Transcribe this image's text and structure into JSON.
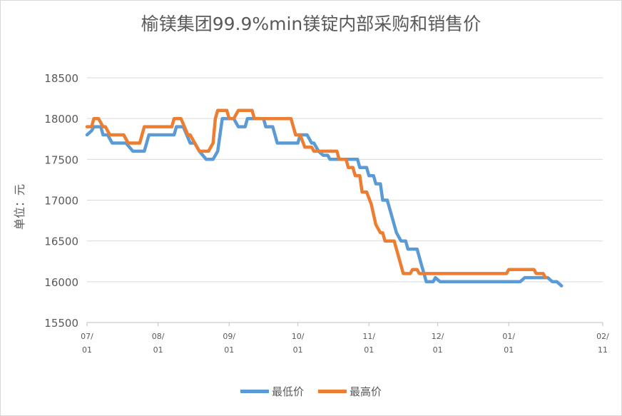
{
  "chart_data": {
    "type": "line",
    "title": "榆镁集团99.9%min镁锭内部采购和销售价",
    "ylabel": "单位：元",
    "xlabel": "",
    "ylim": [
      15500,
      18500
    ],
    "yticks": [
      15500,
      16000,
      16500,
      17000,
      17500,
      18000,
      18500
    ],
    "xticks": [
      {
        "top": "07/",
        "bottom": "01",
        "x": 0
      },
      {
        "top": "08/",
        "bottom": "01",
        "x": 31
      },
      {
        "top": "09/",
        "bottom": "01",
        "x": 62
      },
      {
        "top": "10/",
        "bottom": "01",
        "x": 92
      },
      {
        "top": "11/",
        "bottom": "01",
        "x": 123
      },
      {
        "top": "12/",
        "bottom": "01",
        "x": 153
      },
      {
        "top": "01/",
        "bottom": "01",
        "x": 184
      },
      {
        "top": "02/",
        "bottom": "11",
        "x": 225
      }
    ],
    "x_range": [
      0,
      225
    ],
    "grid": true,
    "legend": "bottom",
    "series": [
      {
        "name": "最低价",
        "color": "#5b9bd5",
        "points": [
          [
            0,
            17800
          ],
          [
            2,
            17850
          ],
          [
            3,
            17900
          ],
          [
            6,
            17900
          ],
          [
            7,
            17800
          ],
          [
            9,
            17800
          ],
          [
            11,
            17700
          ],
          [
            17,
            17700
          ],
          [
            20,
            17600
          ],
          [
            25,
            17600
          ],
          [
            27,
            17800
          ],
          [
            38,
            17800
          ],
          [
            39,
            17900
          ],
          [
            42,
            17900
          ],
          [
            45,
            17700
          ],
          [
            47,
            17700
          ],
          [
            49,
            17600
          ],
          [
            52,
            17500
          ],
          [
            55,
            17500
          ],
          [
            57,
            17600
          ],
          [
            59,
            18000
          ],
          [
            64,
            18000
          ],
          [
            66,
            17900
          ],
          [
            69,
            17900
          ],
          [
            70,
            18000
          ],
          [
            77,
            18000
          ],
          [
            78,
            17900
          ],
          [
            81,
            17900
          ],
          [
            83,
            17700
          ],
          [
            92,
            17700
          ],
          [
            93,
            17800
          ],
          [
            96,
            17800
          ],
          [
            98,
            17700
          ],
          [
            99,
            17700
          ],
          [
            101,
            17600
          ],
          [
            103,
            17550
          ],
          [
            105,
            17550
          ],
          [
            106,
            17500
          ],
          [
            118,
            17500
          ],
          [
            119,
            17400
          ],
          [
            122,
            17400
          ],
          [
            123,
            17300
          ],
          [
            125,
            17300
          ],
          [
            126,
            17200
          ],
          [
            128,
            17200
          ],
          [
            129,
            17000
          ],
          [
            131,
            17000
          ],
          [
            133,
            16800
          ],
          [
            135,
            16600
          ],
          [
            137,
            16500
          ],
          [
            139,
            16500
          ],
          [
            140,
            16400
          ],
          [
            144,
            16400
          ],
          [
            146,
            16200
          ],
          [
            148,
            16000
          ],
          [
            151,
            16000
          ],
          [
            152,
            16050
          ],
          [
            154,
            16000
          ],
          [
            189,
            16000
          ],
          [
            191,
            16050
          ],
          [
            201,
            16050
          ],
          [
            203,
            16000
          ],
          [
            205,
            16000
          ],
          [
            207,
            15950
          ]
        ]
      },
      {
        "name": "最高价",
        "color": "#ed7d31",
        "points": [
          [
            0,
            17900
          ],
          [
            2,
            17900
          ],
          [
            3,
            18000
          ],
          [
            5,
            18000
          ],
          [
            7,
            17900
          ],
          [
            8,
            17900
          ],
          [
            10,
            17800
          ],
          [
            16,
            17800
          ],
          [
            18,
            17700
          ],
          [
            23,
            17700
          ],
          [
            25,
            17900
          ],
          [
            37,
            17900
          ],
          [
            38,
            18000
          ],
          [
            41,
            18000
          ],
          [
            44,
            17800
          ],
          [
            45,
            17800
          ],
          [
            47,
            17700
          ],
          [
            49,
            17600
          ],
          [
            53,
            17600
          ],
          [
            55,
            17700
          ],
          [
            56,
            18000
          ],
          [
            57,
            18100
          ],
          [
            61,
            18100
          ],
          [
            62,
            18000
          ],
          [
            64,
            18000
          ],
          [
            66,
            18100
          ],
          [
            72,
            18100
          ],
          [
            73,
            18000
          ],
          [
            89,
            18000
          ],
          [
            91,
            17800
          ],
          [
            93,
            17800
          ],
          [
            95,
            17650
          ],
          [
            98,
            17650
          ],
          [
            99,
            17600
          ],
          [
            109,
            17600
          ],
          [
            110,
            17500
          ],
          [
            113,
            17500
          ],
          [
            114,
            17400
          ],
          [
            116,
            17400
          ],
          [
            117,
            17300
          ],
          [
            119,
            17300
          ],
          [
            120,
            17100
          ],
          [
            122,
            17100
          ],
          [
            124,
            16950
          ],
          [
            126,
            16700
          ],
          [
            128,
            16600
          ],
          [
            129,
            16600
          ],
          [
            130,
            16500
          ],
          [
            134,
            16500
          ],
          [
            136,
            16300
          ],
          [
            138,
            16100
          ],
          [
            141,
            16100
          ],
          [
            142,
            16150
          ],
          [
            144,
            16150
          ],
          [
            145,
            16100
          ],
          [
            183,
            16100
          ],
          [
            184,
            16150
          ],
          [
            195,
            16150
          ],
          [
            196,
            16100
          ],
          [
            199,
            16100
          ],
          [
            200,
            16050
          ]
        ]
      }
    ]
  }
}
